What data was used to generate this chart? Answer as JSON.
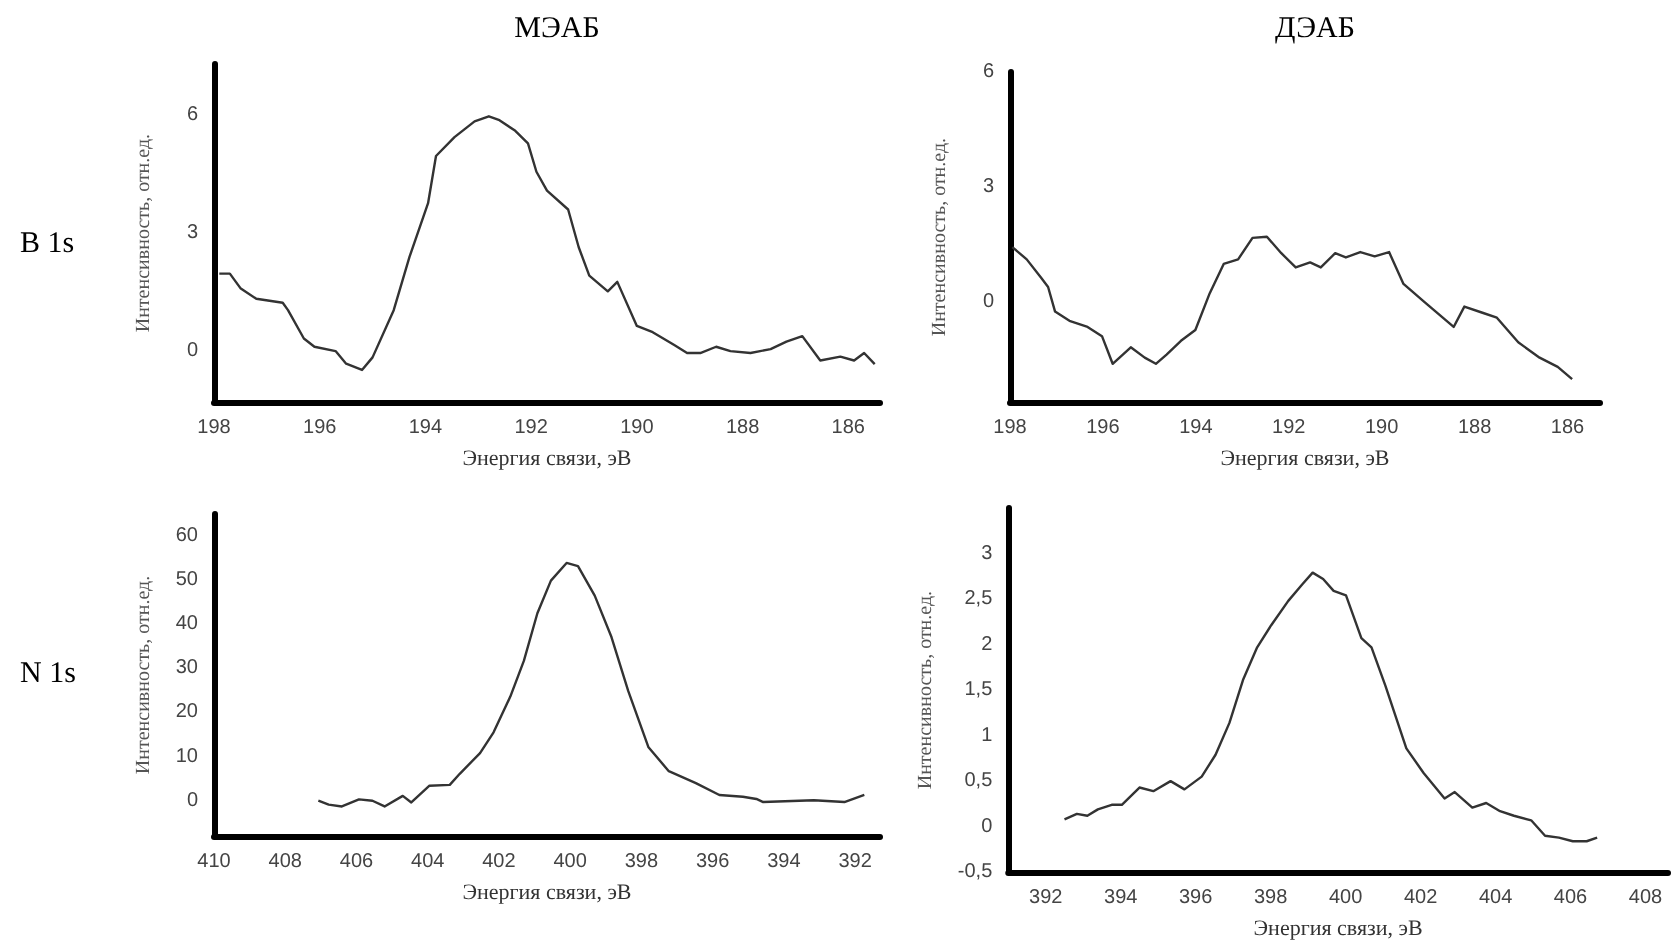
{
  "chart_data": [
    {
      "type": "line",
      "title": "МЭАБ",
      "annotations": [
        "B 1s"
      ],
      "xlabel": "Энергия связи, эВ",
      "ylabel": "Интенсивность, отн.ед.",
      "xlim": [
        198,
        185.4
      ],
      "ylim": [
        -1.3,
        7.3
      ],
      "xticks": [
        198,
        196,
        194,
        192,
        190,
        188,
        186
      ],
      "yticks": [
        0,
        3,
        6
      ],
      "marker": "none",
      "line_style": "solid",
      "color": "#333333",
      "x": [
        197.9,
        197.7,
        197.5,
        197.2,
        196.7,
        196.6,
        196.3,
        196.1,
        195.7,
        195.5,
        195.2,
        195.0,
        194.6,
        194.3,
        193.95,
        193.8,
        193.45,
        193.07,
        192.8,
        192.6,
        192.3,
        192.06,
        191.9,
        191.7,
        191.3,
        191.1,
        190.9,
        190.55,
        190.37,
        190.0,
        189.7,
        189.3,
        189.05,
        188.8,
        188.5,
        188.23,
        187.85,
        187.47,
        187.17,
        186.87,
        186.53,
        186.15,
        185.89,
        185.7,
        185.5
      ],
      "values": [
        1.97,
        1.97,
        1.6,
        1.33,
        1.23,
        1.04,
        0.32,
        0.11,
        0,
        -0.32,
        -0.48,
        -0.16,
        1.04,
        2.4,
        3.76,
        4.96,
        5.44,
        5.84,
        5.97,
        5.87,
        5.6,
        5.28,
        4.56,
        4.08,
        3.6,
        2.64,
        1.92,
        1.52,
        1.76,
        0.64,
        0.48,
        0.16,
        -0.05,
        -0.05,
        0.11,
        0,
        -0.05,
        0.05,
        0.24,
        0.38,
        -0.24,
        -0.14,
        -0.24,
        -0.05,
        -0.33
      ]
    },
    {
      "type": "line",
      "title": "ДЭАБ",
      "xlabel": "Энергия связи, эВ",
      "ylabel": "Интенсивность, отн.ед.",
      "xlim": [
        198,
        185.3
      ],
      "ylim": [
        -2.6,
        6
      ],
      "xticks": [
        198,
        196,
        194,
        192,
        190,
        188,
        186
      ],
      "yticks": [
        0,
        3,
        6
      ],
      "marker": "none",
      "line_style": "solid",
      "color": "#333333",
      "x": [
        197.95,
        197.64,
        197.33,
        197.18,
        197.03,
        196.72,
        196.33,
        196.02,
        195.79,
        195.4,
        195.1,
        194.86,
        194.63,
        194.32,
        194.01,
        193.7,
        193.4,
        193.09,
        192.78,
        192.47,
        192.16,
        191.85,
        191.54,
        191.31,
        191.0,
        190.77,
        190.46,
        190.15,
        189.84,
        189.53,
        189.07,
        188.45,
        188.22,
        187.83,
        187.52,
        187.06,
        186.6,
        186.21,
        185.9
      ],
      "values": [
        1.44,
        1.12,
        0.64,
        0.4,
        -0.24,
        -0.48,
        -0.64,
        -0.88,
        -1.6,
        -1.17,
        -1.44,
        -1.6,
        -1.36,
        -1.0,
        -0.72,
        0.24,
        1.0,
        1.12,
        1.68,
        1.71,
        1.28,
        0.91,
        1.04,
        0.91,
        1.28,
        1.17,
        1.31,
        1.2,
        1.31,
        0.48,
        0,
        -0.64,
        -0.11,
        -0.27,
        -0.4,
        -1.04,
        -1.44,
        -1.68,
        -2.0
      ]
    },
    {
      "type": "line",
      "annotations": [
        "N 1s"
      ],
      "xlabel": "Энергия связи, эВ",
      "ylabel": "Интенсивность, отн.ед.",
      "xlim": [
        410,
        391.3
      ],
      "ylim": [
        -8,
        65
      ],
      "xticks": [
        410,
        408,
        406,
        404,
        402,
        400,
        398,
        396,
        394,
        392
      ],
      "yticks": [
        0,
        10,
        20,
        30,
        40,
        50,
        60
      ],
      "marker": "none",
      "line_style": "solid",
      "color": "#333333",
      "x": [
        407.07,
        406.78,
        406.41,
        405.93,
        405.55,
        405.21,
        404.7,
        404.46,
        403.95,
        403.38,
        403.1,
        402.53,
        402.15,
        401.68,
        401.3,
        400.92,
        400.54,
        400.1,
        399.78,
        399.31,
        398.84,
        398.37,
        397.8,
        397.23,
        396.47,
        395.81,
        395.15,
        394.77,
        394.58,
        393.16,
        392.3,
        391.74
      ],
      "values": [
        0,
        -0.9,
        -1.3,
        0.3,
        0,
        -1.3,
        1.1,
        -0.4,
        3.4,
        3.6,
        6.1,
        10.8,
        15.5,
        23.6,
        31.7,
        42.5,
        49.9,
        53.9,
        53.2,
        46.5,
        37.1,
        24.9,
        12.1,
        6.7,
        4.0,
        1.3,
        0.9,
        0.4,
        -0.3,
        0.1,
        -0.3,
        1.3
      ]
    },
    {
      "type": "line",
      "xlabel": "Энергия связи, эВ",
      "ylabel": "Интенсивность, отн.ед.",
      "xlim": [
        391,
        408.6
      ],
      "ylim": [
        -0.5,
        3.5
      ],
      "xticks": [
        392,
        394,
        396,
        398,
        400,
        402,
        404,
        406,
        408
      ],
      "yticks": [
        {
          "value": -0.5,
          "label": "-0,5"
        },
        0,
        {
          "value": 0.5,
          "label": "0,5"
        },
        1,
        {
          "value": 1.5,
          "label": "1,5"
        },
        2,
        {
          "value": 2.5,
          "label": "2,5"
        },
        3
      ],
      "marker": "none",
      "line_style": "solid",
      "color": "#333333",
      "x": [
        392.5,
        392.83,
        393.11,
        393.39,
        393.76,
        394.03,
        394.5,
        394.87,
        395.33,
        395.7,
        396.16,
        396.53,
        396.9,
        397.27,
        397.64,
        398.01,
        398.47,
        398.84,
        399.12,
        399.4,
        399.68,
        400.01,
        400.42,
        400.69,
        401.06,
        401.62,
        402.08,
        402.64,
        402.91,
        403.38,
        403.75,
        404.12,
        404.49,
        404.95,
        405.32,
        405.69,
        406.06,
        406.43,
        406.71
      ],
      "values": [
        0.08,
        0.14,
        0.12,
        0.19,
        0.24,
        0.24,
        0.43,
        0.39,
        0.5,
        0.41,
        0.55,
        0.79,
        1.14,
        1.62,
        1.97,
        2.21,
        2.48,
        2.66,
        2.79,
        2.72,
        2.59,
        2.54,
        2.07,
        1.97,
        1.55,
        0.86,
        0.59,
        0.31,
        0.38,
        0.21,
        0.26,
        0.17,
        0.12,
        0.07,
        -0.1,
        -0.12,
        -0.16,
        -0.16,
        -0.12
      ]
    }
  ]
}
